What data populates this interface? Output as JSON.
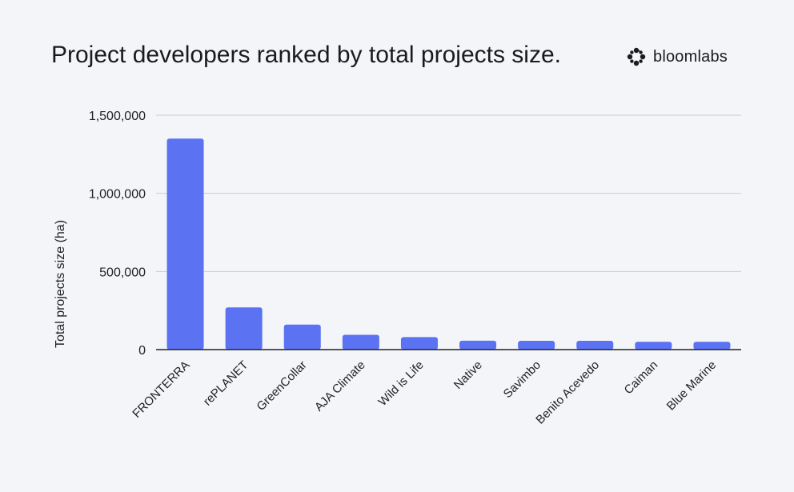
{
  "brand": {
    "name": "bloomlabs",
    "logo_icon": "bloomlabs-swirl-logo-icon"
  },
  "colors": {
    "bar": "#5b72f2",
    "grid": "#c9ccd3",
    "axis": "#222222",
    "background": "#f3f5f9"
  },
  "chart_data": {
    "type": "bar",
    "title": "Project developers ranked by total projects size.",
    "xlabel": "",
    "ylabel": "Total projects size (ha)",
    "categories": [
      "FRONTERRA",
      "rePLANET",
      "GreenCollar",
      "AJA Climate",
      "Wild is Life",
      "Native",
      "Savimbo",
      "Benito Acevedo",
      "Caiman",
      "Blue Marine"
    ],
    "values": [
      1350000,
      270000,
      160000,
      95000,
      80000,
      57000,
      56000,
      56000,
      50000,
      50000
    ],
    "ylim": [
      0,
      1500000
    ],
    "yticks": [
      0,
      500000,
      1000000,
      1500000
    ],
    "ytick_labels": [
      "0",
      "500,000",
      "1,000,000",
      "1,500,000"
    ],
    "grid": true,
    "legend": "none"
  }
}
